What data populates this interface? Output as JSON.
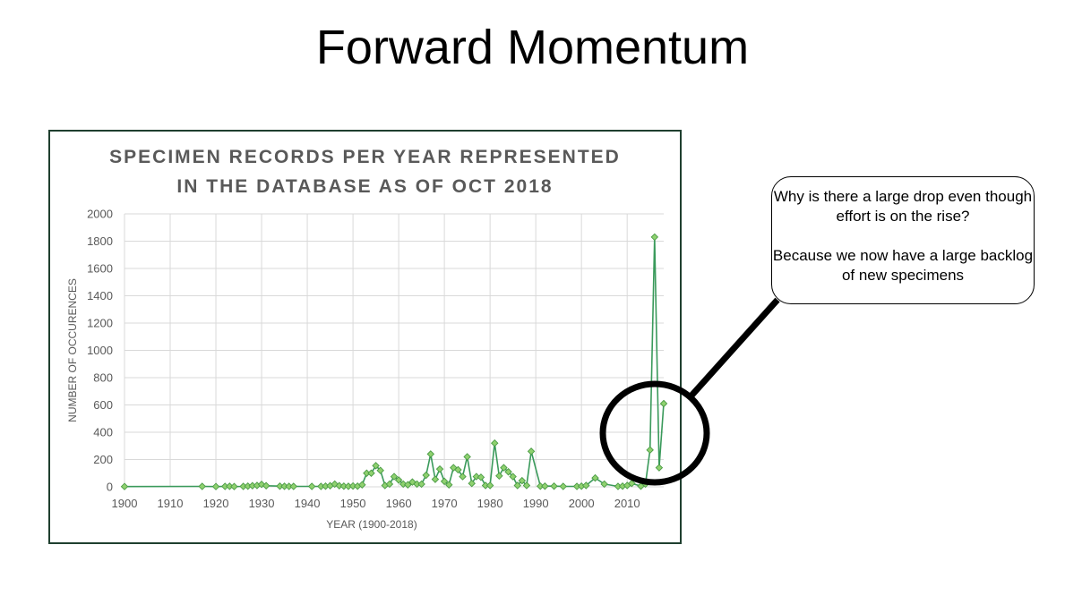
{
  "slide": {
    "title": "Forward Momentum"
  },
  "callout": {
    "question": "Why is there a large drop even though effort is on the rise?",
    "answer": "Because we now have a large backlog of new specimens"
  },
  "colors": {
    "line": "#3a9a5b",
    "marker_fill": "#8fd16f",
    "marker_stroke": "#4a9a45",
    "grid": "#d9d9d9",
    "chart_title": "#595959",
    "axis_text": "#595959",
    "frame": "#1f3f2f",
    "highlight_circle": "#000000"
  },
  "chart_data": {
    "type": "line",
    "title_lines": [
      "SPECIMEN RECORDS PER YEAR REPRESENTED",
      "IN THE DATABASE AS OF OCT 2018"
    ],
    "xlabel": "YEAR (1900-2018)",
    "ylabel": "NUMBER OF OCCURENCES",
    "xlim": [
      1900,
      2018
    ],
    "ylim": [
      0,
      2000
    ],
    "x_ticks": [
      1900,
      1910,
      1920,
      1930,
      1940,
      1950,
      1960,
      1970,
      1980,
      1990,
      2000,
      2010
    ],
    "y_ticks": [
      0,
      200,
      400,
      600,
      800,
      1000,
      1200,
      1400,
      1600,
      1800,
      2000
    ],
    "grid": true,
    "legend": "none",
    "marker": "diamond",
    "series": [
      {
        "points": [
          [
            1900,
            2
          ],
          [
            1917,
            3
          ],
          [
            1920,
            2
          ],
          [
            1922,
            3
          ],
          [
            1923,
            4
          ],
          [
            1924,
            2
          ],
          [
            1926,
            3
          ],
          [
            1927,
            5
          ],
          [
            1928,
            8
          ],
          [
            1929,
            10
          ],
          [
            1930,
            18
          ],
          [
            1931,
            8
          ],
          [
            1934,
            5
          ],
          [
            1935,
            4
          ],
          [
            1936,
            3
          ],
          [
            1937,
            3
          ],
          [
            1941,
            3
          ],
          [
            1943,
            3
          ],
          [
            1944,
            5
          ],
          [
            1945,
            8
          ],
          [
            1946,
            20
          ],
          [
            1947,
            8
          ],
          [
            1948,
            5
          ],
          [
            1949,
            4
          ],
          [
            1950,
            6
          ],
          [
            1951,
            5
          ],
          [
            1952,
            15
          ],
          [
            1953,
            100
          ],
          [
            1954,
            100
          ],
          [
            1955,
            155
          ],
          [
            1956,
            120
          ],
          [
            1957,
            10
          ],
          [
            1958,
            20
          ],
          [
            1959,
            75
          ],
          [
            1960,
            50
          ],
          [
            1961,
            20
          ],
          [
            1962,
            15
          ],
          [
            1963,
            35
          ],
          [
            1964,
            20
          ],
          [
            1965,
            20
          ],
          [
            1966,
            85
          ],
          [
            1967,
            240
          ],
          [
            1968,
            55
          ],
          [
            1969,
            130
          ],
          [
            1970,
            40
          ],
          [
            1971,
            15
          ],
          [
            1972,
            140
          ],
          [
            1973,
            125
          ],
          [
            1974,
            75
          ],
          [
            1975,
            220
          ],
          [
            1976,
            25
          ],
          [
            1977,
            75
          ],
          [
            1978,
            70
          ],
          [
            1979,
            10
          ],
          [
            1980,
            10
          ],
          [
            1981,
            320
          ],
          [
            1982,
            80
          ],
          [
            1983,
            140
          ],
          [
            1984,
            110
          ],
          [
            1985,
            75
          ],
          [
            1986,
            10
          ],
          [
            1987,
            45
          ],
          [
            1988,
            10
          ],
          [
            1989,
            260
          ],
          [
            1991,
            5
          ],
          [
            1992,
            5
          ],
          [
            1994,
            5
          ],
          [
            1996,
            3
          ],
          [
            1999,
            3
          ],
          [
            2000,
            5
          ],
          [
            2001,
            10
          ],
          [
            2003,
            65
          ],
          [
            2005,
            20
          ],
          [
            2008,
            3
          ],
          [
            2009,
            5
          ],
          [
            2010,
            10
          ],
          [
            2011,
            25
          ],
          [
            2013,
            5
          ],
          [
            2014,
            20
          ],
          [
            2015,
            270
          ],
          [
            2016,
            1830
          ],
          [
            2017,
            140
          ],
          [
            2018,
            610
          ]
        ]
      }
    ]
  }
}
